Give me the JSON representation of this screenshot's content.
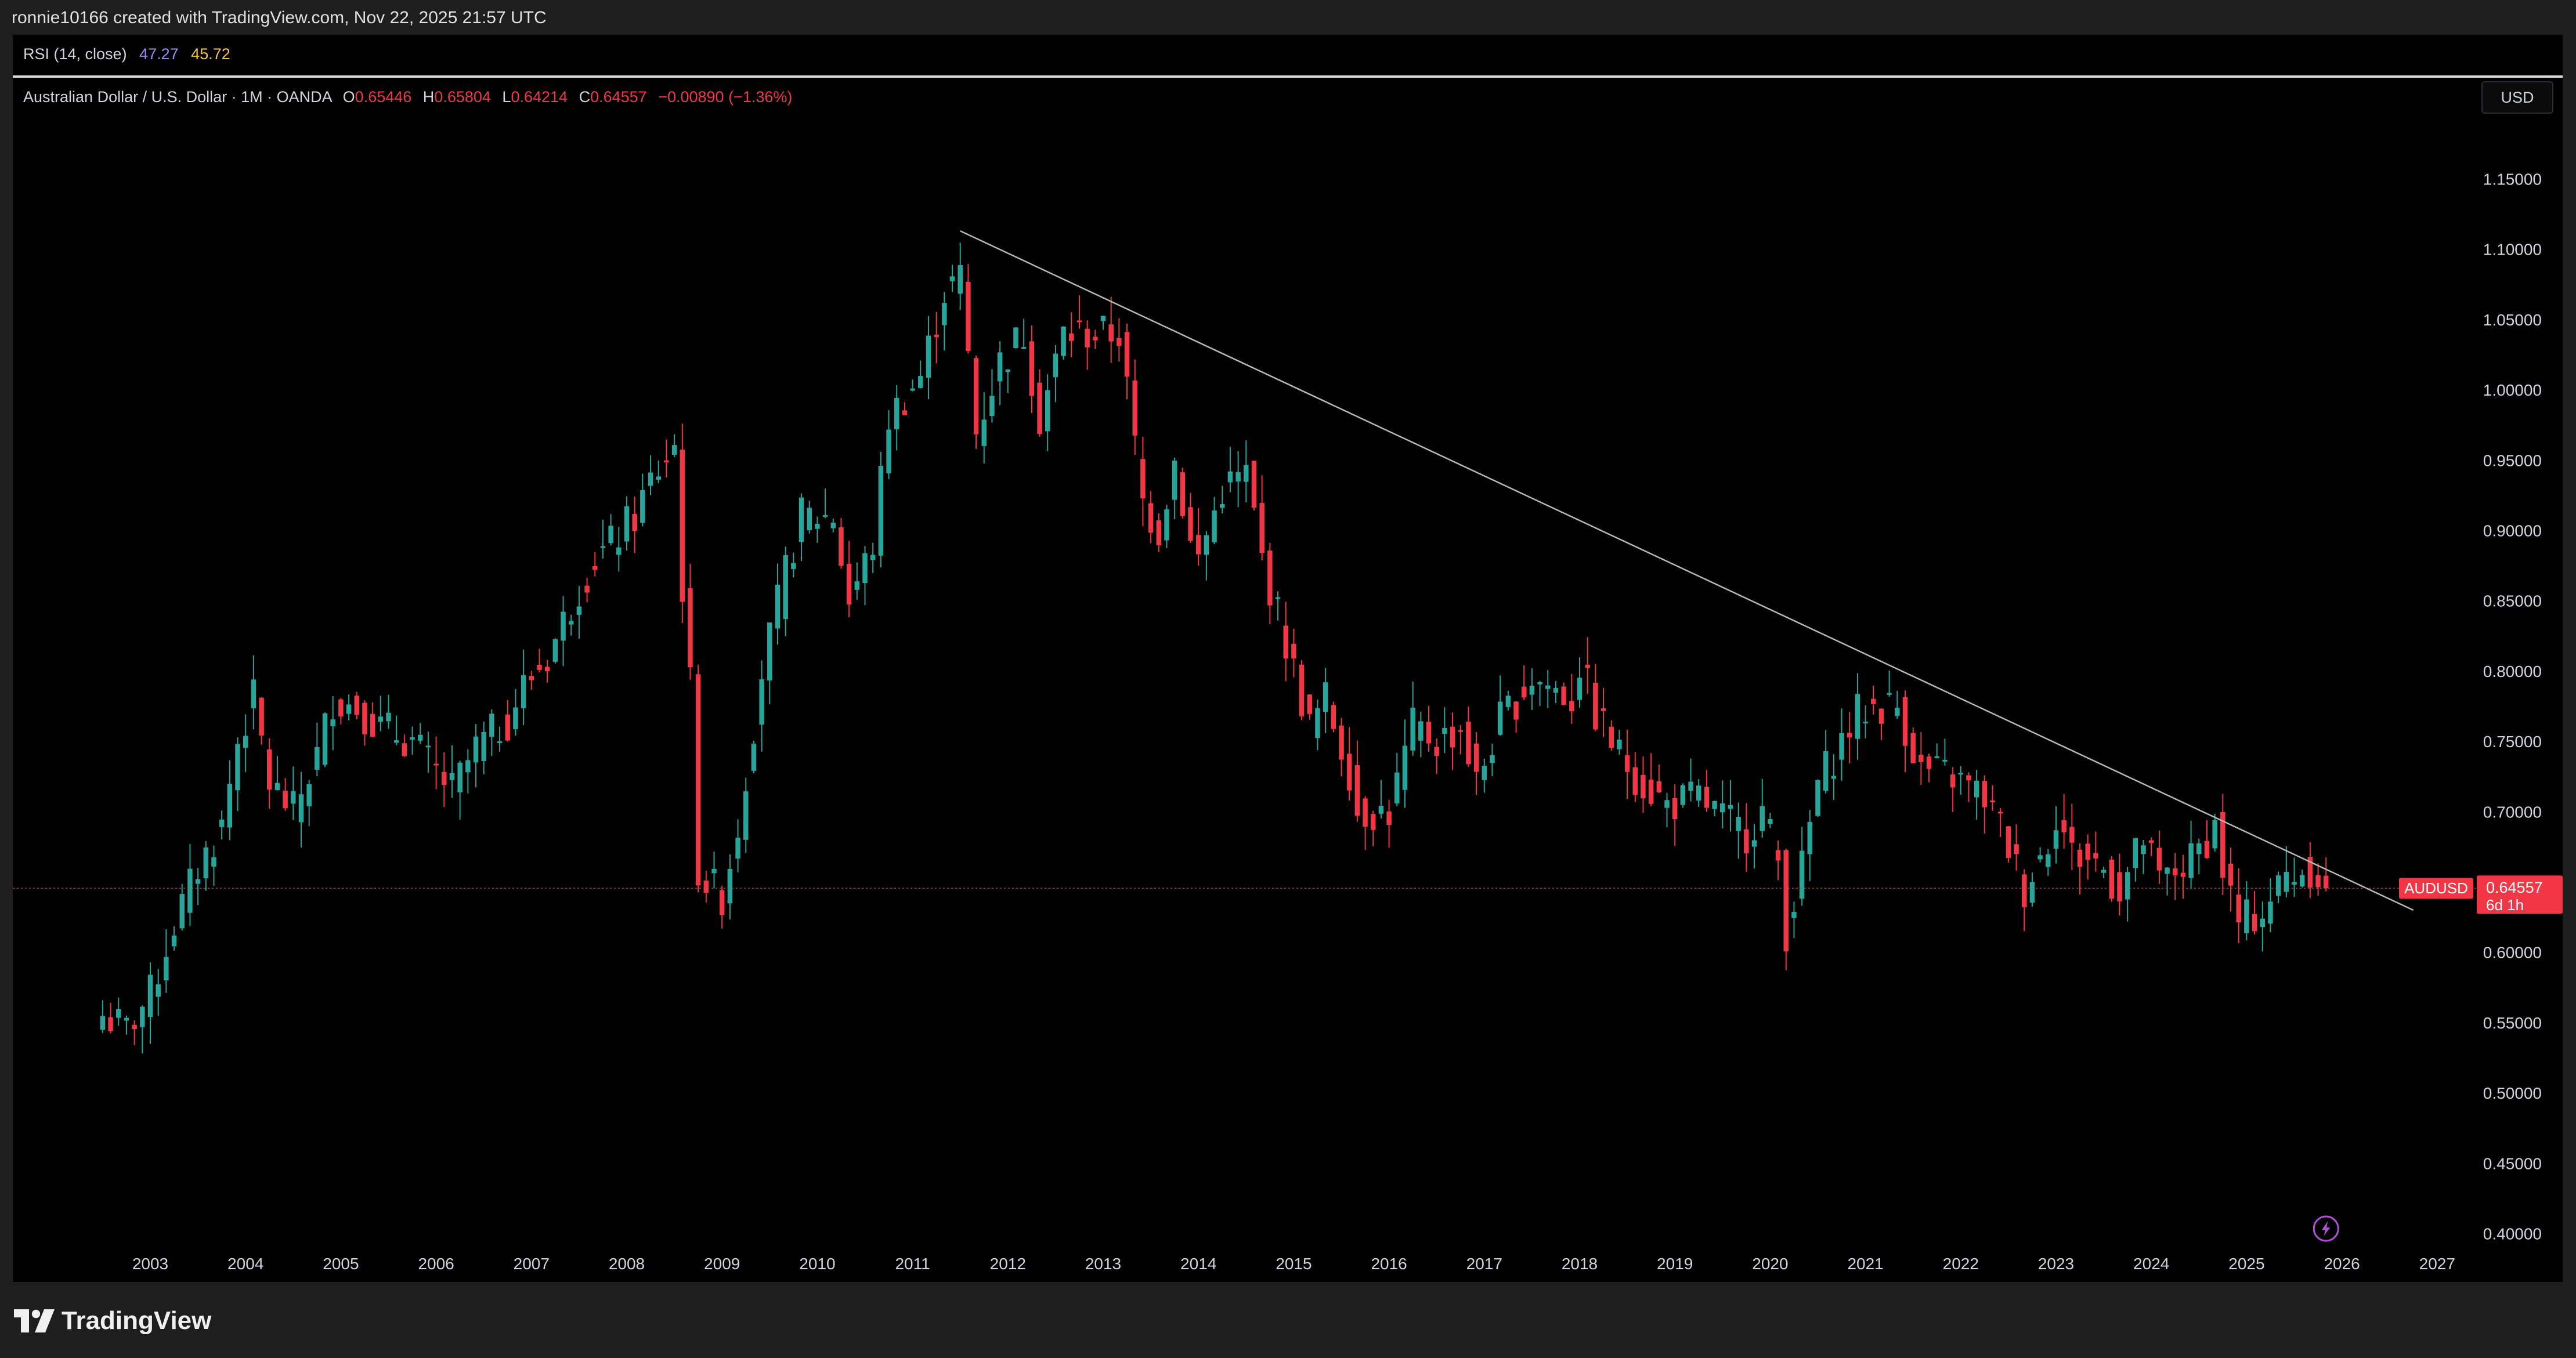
{
  "header": {
    "credit": "ronnie10166 created with TradingView.com, Nov 22, 2025 21:57 UTC"
  },
  "rsi": {
    "label": "RSI (14, close)",
    "value1": "47.27",
    "value2": "45.72",
    "color1": "#9b87f5",
    "color2": "#f5c242"
  },
  "legend": {
    "symbol": "Australian Dollar / U.S. Dollar · 1M · OANDA",
    "o_label": "O",
    "o_value": "0.65446",
    "h_label": "H",
    "h_value": "0.65804",
    "l_label": "L",
    "l_value": "0.64214",
    "c_label": "C",
    "c_value": "0.64557",
    "change": "−0.00890 (−1.36%)"
  },
  "currency_button": "USD",
  "price_tag": {
    "symbol": "AUDUSD",
    "price": "0.64557",
    "countdown": "6d 1h"
  },
  "colors": {
    "up": "#26a69a",
    "down": "#f23645",
    "background": "#000000",
    "trendline": "#b8b8b8"
  },
  "icons": {
    "lightning": "lightning-icon",
    "logo": "tradingview-logo-icon"
  },
  "footer": {
    "brand": "TradingView"
  },
  "chart_data": {
    "type": "candlestick",
    "interval": "1M",
    "x_axis": {
      "tick_labels": [
        "2003",
        "2004",
        "2005",
        "2006",
        "2007",
        "2008",
        "2009",
        "2010",
        "2011",
        "2012",
        "2013",
        "2014",
        "2015",
        "2016",
        "2017",
        "2018",
        "2019",
        "2020",
        "2021",
        "2022",
        "2023",
        "2024",
        "2025",
        "2026",
        "2027"
      ]
    },
    "y_axis": {
      "tick_labels": [
        "0.40000",
        "0.45000",
        "0.50000",
        "0.55000",
        "0.60000",
        "0.65000",
        "0.70000",
        "0.75000",
        "0.80000",
        "0.85000",
        "0.90000",
        "0.95000",
        "1.00000",
        "1.05000",
        "1.10000",
        "1.15000"
      ],
      "ylim": [
        0.38,
        1.17
      ],
      "position": "right"
    },
    "anchors": [
      [
        "2002-07",
        0.555
      ],
      [
        "2002-10",
        0.545
      ],
      [
        "2003-01",
        0.57
      ],
      [
        "2003-04",
        0.62
      ],
      [
        "2003-07",
        0.66
      ],
      [
        "2003-10",
        0.69
      ],
      [
        "2003-12",
        0.75
      ],
      [
        "2004-02",
        0.78
      ],
      [
        "2004-04",
        0.72
      ],
      [
        "2004-07",
        0.7
      ],
      [
        "2004-10",
        0.74
      ],
      [
        "2004-12",
        0.78
      ],
      [
        "2005-03",
        0.775
      ],
      [
        "2005-06",
        0.76
      ],
      [
        "2005-10",
        0.75
      ],
      [
        "2005-12",
        0.735
      ],
      [
        "2006-03",
        0.715
      ],
      [
        "2006-06",
        0.745
      ],
      [
        "2006-10",
        0.765
      ],
      [
        "2006-12",
        0.79
      ],
      [
        "2007-03",
        0.81
      ],
      [
        "2007-05",
        0.835
      ],
      [
        "2007-07",
        0.86
      ],
      [
        "2007-09",
        0.88
      ],
      [
        "2007-11",
        0.89
      ],
      [
        "2008-02",
        0.91
      ],
      [
        "2008-04",
        0.935
      ],
      [
        "2008-07",
        0.96
      ],
      [
        "2008-08",
        0.86
      ],
      [
        "2008-09",
        0.79
      ],
      [
        "2008-10",
        0.66
      ],
      [
        "2008-11",
        0.65
      ],
      [
        "2009-01",
        0.64
      ],
      [
        "2009-03",
        0.69
      ],
      [
        "2009-06",
        0.8
      ],
      [
        "2009-09",
        0.87
      ],
      [
        "2009-11",
        0.91
      ],
      [
        "2010-03",
        0.91
      ],
      [
        "2010-05",
        0.85
      ],
      [
        "2010-08",
        0.89
      ],
      [
        "2010-10",
        0.98
      ],
      [
        "2011-02",
        1.01
      ],
      [
        "2011-05",
        1.07
      ],
      [
        "2011-07",
        1.08
      ],
      [
        "2011-09",
        0.97
      ],
      [
        "2011-12",
        1.02
      ],
      [
        "2012-03",
        1.04
      ],
      [
        "2012-05",
        0.98
      ],
      [
        "2012-08",
        1.04
      ],
      [
        "2013-03",
        1.04
      ],
      [
        "2013-06",
        0.92
      ],
      [
        "2013-08",
        0.9
      ],
      [
        "2013-10",
        0.95
      ],
      [
        "2013-12",
        0.89
      ],
      [
        "2014-01",
        0.88
      ],
      [
        "2014-04",
        0.93
      ],
      [
        "2014-07",
        0.94
      ],
      [
        "2014-09",
        0.88
      ],
      [
        "2014-12",
        0.82
      ],
      [
        "2015-03",
        0.76
      ],
      [
        "2015-05",
        0.78
      ],
      [
        "2015-08",
        0.73
      ],
      [
        "2015-09",
        0.7
      ],
      [
        "2016-01",
        0.7
      ],
      [
        "2016-04",
        0.76
      ],
      [
        "2016-07",
        0.75
      ],
      [
        "2016-10",
        0.76
      ],
      [
        "2016-12",
        0.72
      ],
      [
        "2017-03",
        0.765
      ],
      [
        "2017-07",
        0.795
      ],
      [
        "2017-09",
        0.79
      ],
      [
        "2017-12",
        0.78
      ],
      [
        "2018-01",
        0.805
      ],
      [
        "2018-03",
        0.77
      ],
      [
        "2018-06",
        0.74
      ],
      [
        "2018-09",
        0.72
      ],
      [
        "2018-12",
        0.705
      ],
      [
        "2019-04",
        0.71
      ],
      [
        "2019-07",
        0.695
      ],
      [
        "2019-10",
        0.685
      ],
      [
        "2019-12",
        0.7
      ],
      [
        "2020-02",
        0.665
      ],
      [
        "2020-03",
        0.615
      ],
      [
        "2020-05",
        0.66
      ],
      [
        "2020-07",
        0.72
      ],
      [
        "2020-12",
        0.77
      ],
      [
        "2021-02",
        0.775
      ],
      [
        "2021-05",
        0.775
      ],
      [
        "2021-08",
        0.73
      ],
      [
        "2021-12",
        0.725
      ],
      [
        "2022-04",
        0.71
      ],
      [
        "2022-06",
        0.69
      ],
      [
        "2022-09",
        0.645
      ],
      [
        "2022-12",
        0.68
      ],
      [
        "2023-01",
        0.7
      ],
      [
        "2023-03",
        0.67
      ],
      [
        "2023-06",
        0.665
      ],
      [
        "2023-09",
        0.645
      ],
      [
        "2023-12",
        0.68
      ],
      [
        "2024-02",
        0.65
      ],
      [
        "2024-06",
        0.665
      ],
      [
        "2024-09",
        0.69
      ],
      [
        "2024-10",
        0.66
      ],
      [
        "2024-12",
        0.62
      ],
      [
        "2025-03",
        0.63
      ],
      [
        "2025-06",
        0.655
      ],
      [
        "2025-09",
        0.66
      ],
      [
        "2025-10",
        0.655
      ],
      [
        "2025-11",
        0.646
      ]
    ],
    "trendline": {
      "from": [
        "2011-07",
        1.113
      ],
      "to": [
        "2026-10",
        0.63
      ]
    },
    "last_price": 0.64557
  }
}
